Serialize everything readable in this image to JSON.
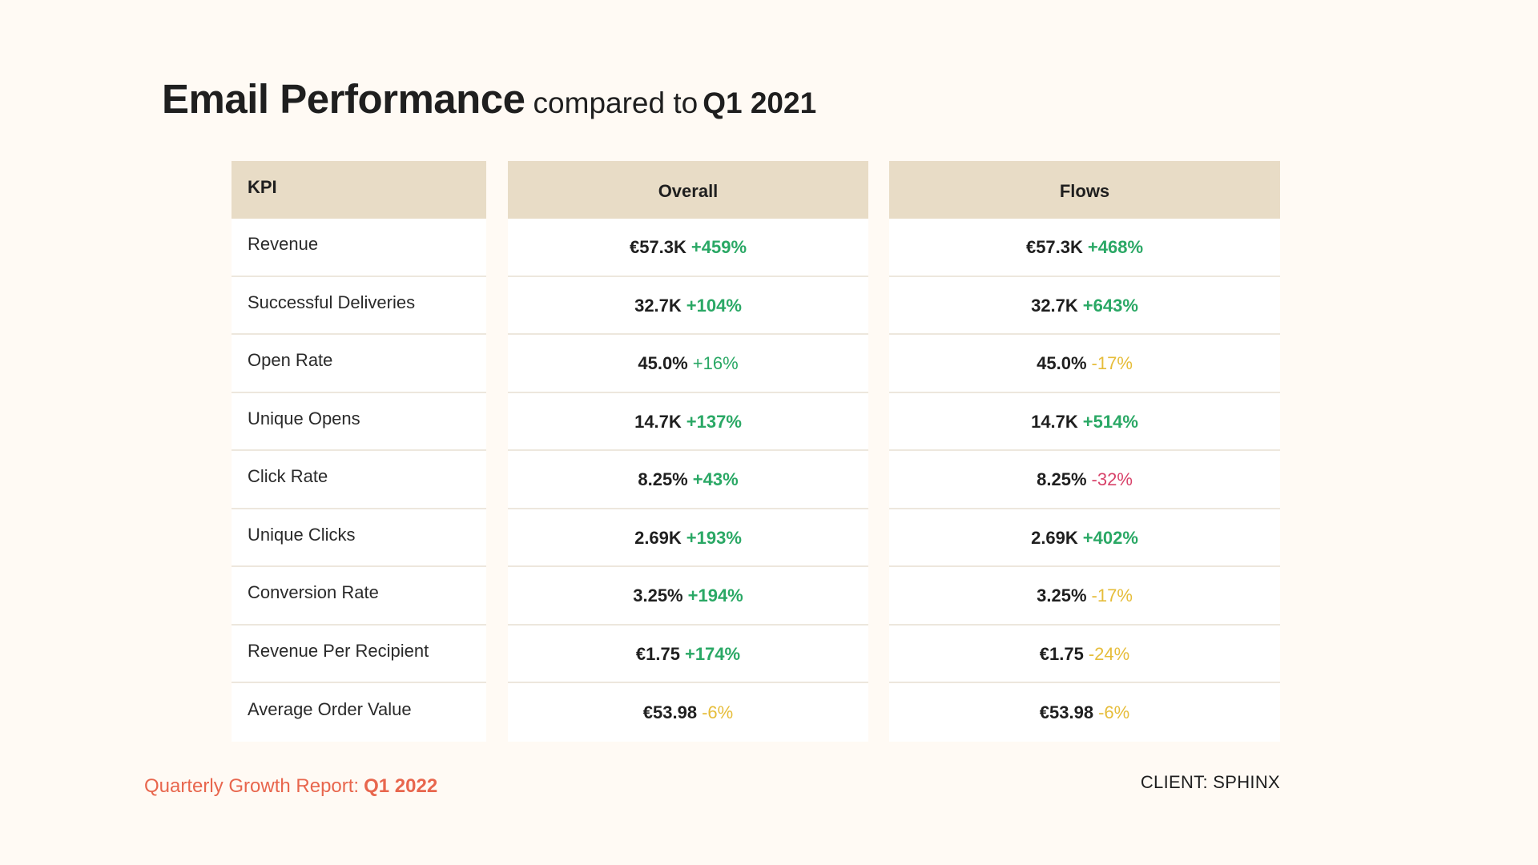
{
  "header": {
    "title": "Email Performance",
    "subtitle": "compared to",
    "period": "Q1 2021"
  },
  "table": {
    "headers": {
      "kpi": "KPI",
      "overall": "Overall",
      "flows": "Flows"
    },
    "rows": [
      {
        "kpi": "Revenue",
        "overall": {
          "value": "€57.3K",
          "change": "+459%",
          "tone": "up"
        },
        "flows": {
          "value": "€57.3K",
          "change": "+468%",
          "tone": "up"
        }
      },
      {
        "kpi": "Successful Deliveries",
        "overall": {
          "value": "32.7K",
          "change": "+104%",
          "tone": "up"
        },
        "flows": {
          "value": "32.7K",
          "change": "+643%",
          "tone": "up"
        }
      },
      {
        "kpi": "Open Rate",
        "overall": {
          "value": "45.0%",
          "change": "+16%",
          "tone": "up-soft"
        },
        "flows": {
          "value": "45.0%",
          "change": "-17%",
          "tone": "warn"
        }
      },
      {
        "kpi": "Unique Opens",
        "overall": {
          "value": "14.7K",
          "change": "+137%",
          "tone": "up"
        },
        "flows": {
          "value": "14.7K",
          "change": "+514%",
          "tone": "up"
        }
      },
      {
        "kpi": "Click Rate",
        "overall": {
          "value": "8.25%",
          "change": "+43%",
          "tone": "up"
        },
        "flows": {
          "value": "8.25%",
          "change": "-32%",
          "tone": "down"
        }
      },
      {
        "kpi": "Unique Clicks",
        "overall": {
          "value": "2.69K",
          "change": "+193%",
          "tone": "up"
        },
        "flows": {
          "value": "2.69K",
          "change": "+402%",
          "tone": "up"
        }
      },
      {
        "kpi": "Conversion Rate",
        "overall": {
          "value": "3.25%",
          "change": "+194%",
          "tone": "up"
        },
        "flows": {
          "value": "3.25%",
          "change": "-17%",
          "tone": "warn"
        }
      },
      {
        "kpi": "Revenue Per Recipient",
        "overall": {
          "value": "€1.75",
          "change": "+174%",
          "tone": "up"
        },
        "flows": {
          "value": "€1.75",
          "change": "-24%",
          "tone": "warn"
        }
      },
      {
        "kpi": "Average Order Value",
        "overall": {
          "value": "€53.98",
          "change": "-6%",
          "tone": "warn"
        },
        "flows": {
          "value": "€53.98",
          "change": "-6%",
          "tone": "warn"
        }
      }
    ]
  },
  "footer": {
    "report_label": "Quarterly Growth Report:",
    "report_period": "Q1 2022",
    "client": "CLIENT: SPHINX"
  },
  "colors": {
    "background": "#fffaf4",
    "header_fill": "#e8dcc6",
    "positive": "#2aa865",
    "warning": "#e6bd3a",
    "negative": "#d8436a",
    "footer_accent": "#e8664d"
  }
}
